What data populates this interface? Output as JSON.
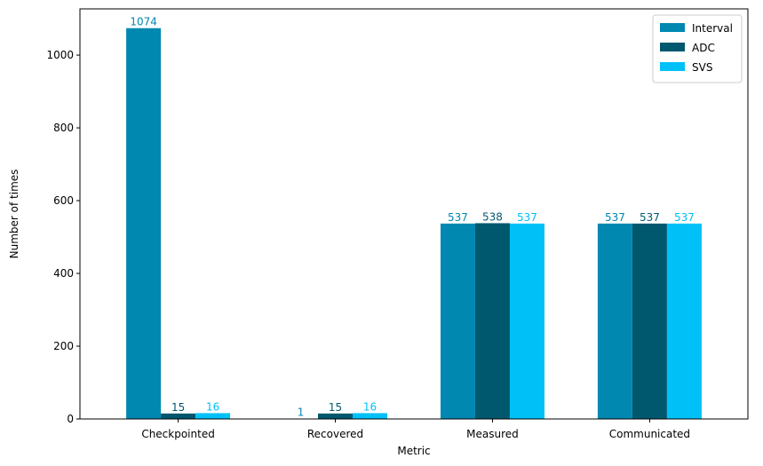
{
  "chart_data": {
    "type": "bar",
    "title": "",
    "xlabel": "Metric",
    "ylabel": "Number of times",
    "categories": [
      "Checkpointed",
      "Recovered",
      "Measured",
      "Communicated"
    ],
    "series": [
      {
        "name": "Interval",
        "color": "#0088b0",
        "values": [
          1074,
          1,
          537,
          537
        ]
      },
      {
        "name": "ADC",
        "color": "#00586e",
        "values": [
          15,
          15,
          538,
          537
        ]
      },
      {
        "name": "SVS",
        "color": "#00c0f8",
        "values": [
          16,
          16,
          537,
          537
        ]
      }
    ],
    "ylim": [
      0,
      1127
    ],
    "yticks": [
      0,
      200,
      400,
      600,
      800,
      1000
    ],
    "grid": false,
    "legend": "top-right",
    "data_labels": true
  }
}
